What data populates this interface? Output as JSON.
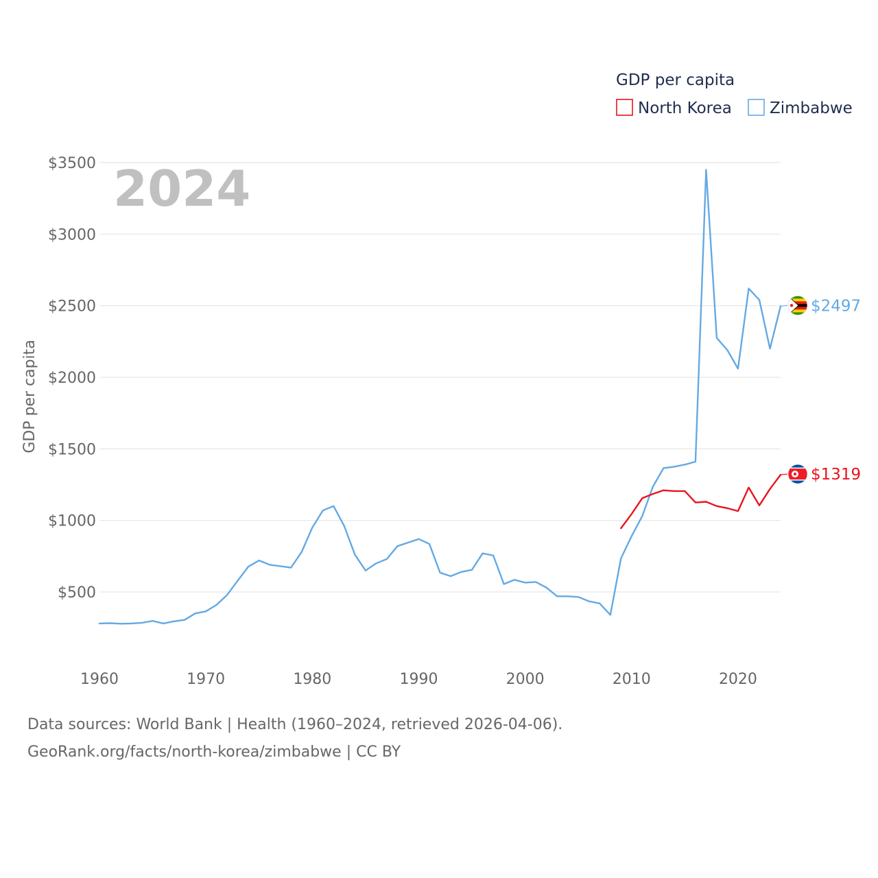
{
  "chart_data": {
    "type": "line",
    "title": "GDP per capita",
    "year_watermark": "2024",
    "ylabel": "GDP per capita",
    "xlabel": "",
    "xlim": [
      1960,
      2024
    ],
    "ylim": [
      0,
      3500
    ],
    "x_ticks": [
      1960,
      1970,
      1980,
      1990,
      2000,
      2010,
      2020
    ],
    "x_tick_labels": [
      "1960",
      "1970",
      "1980",
      "1990",
      "2000",
      "2010",
      "2020"
    ],
    "y_ticks": [
      500,
      1000,
      1500,
      2000,
      2500,
      3000,
      3500
    ],
    "y_tick_labels": [
      "$500",
      "$1000",
      "$1500",
      "$2000",
      "$2500",
      "$3000",
      "$3500"
    ],
    "grid": true,
    "legend_position": "top-right",
    "series": [
      {
        "name": "North Korea",
        "color": "#e8141e",
        "flag_icon": "north-korea-flag-icon",
        "end_label": "$1319",
        "x": [
          2009,
          2010,
          2011,
          2012,
          2013,
          2014,
          2015,
          2016,
          2017,
          2018,
          2019,
          2020,
          2021,
          2022,
          2023,
          2024
        ],
        "values": [
          945,
          1045,
          1155,
          1185,
          1210,
          1205,
          1205,
          1125,
          1130,
          1100,
          1085,
          1065,
          1230,
          1105,
          1220,
          1319
        ]
      },
      {
        "name": "Zimbabwe",
        "color": "#64a9e3",
        "flag_icon": "zimbabwe-flag-icon",
        "end_label": "$2497",
        "x": [
          1960,
          1961,
          1962,
          1963,
          1964,
          1965,
          1966,
          1967,
          1968,
          1969,
          1970,
          1971,
          1972,
          1973,
          1974,
          1975,
          1976,
          1977,
          1978,
          1979,
          1980,
          1981,
          1982,
          1983,
          1984,
          1985,
          1986,
          1987,
          1988,
          1989,
          1990,
          1991,
          1992,
          1993,
          1994,
          1995,
          1996,
          1997,
          1998,
          1999,
          2000,
          2001,
          2002,
          2003,
          2004,
          2005,
          2006,
          2007,
          2008,
          2009,
          2010,
          2011,
          2012,
          2013,
          2014,
          2015,
          2016,
          2017,
          2018,
          2019,
          2020,
          2021,
          2022,
          2023,
          2024
        ],
        "values": [
          280,
          282,
          278,
          280,
          285,
          298,
          280,
          295,
          305,
          350,
          365,
          410,
          480,
          580,
          678,
          720,
          690,
          680,
          670,
          780,
          950,
          1070,
          1100,
          960,
          760,
          650,
          700,
          730,
          820,
          845,
          870,
          835,
          635,
          610,
          640,
          655,
          770,
          755,
          555,
          585,
          565,
          570,
          530,
          470,
          470,
          465,
          435,
          420,
          340,
          735,
          890,
          1030,
          1235,
          1365,
          1375,
          1390,
          1410,
          3450,
          2275,
          2190,
          2060,
          2620,
          2540,
          2200,
          2497
        ]
      }
    ]
  },
  "footer": {
    "sources": "Data sources: World Bank | Health (1960–2024, retrieved 2026-04-06).",
    "url": "GeoRank.org/facts/north-korea/zimbabwe | CC BY"
  }
}
